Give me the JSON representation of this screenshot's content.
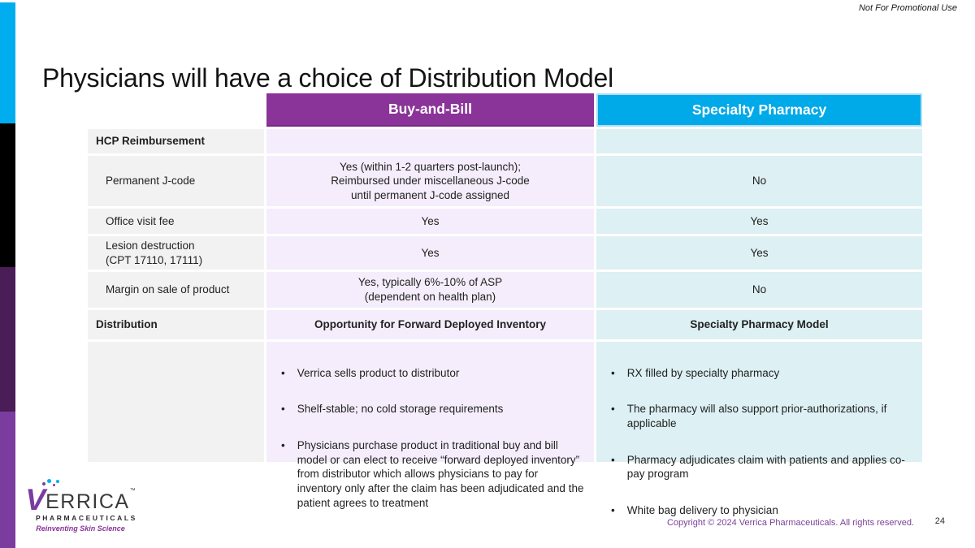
{
  "slide": {
    "disclaimer": "Not For Promotional Use",
    "title": "Physicians will have a choice of Distribution Model",
    "copyright": "Copyright © 2024 Verrica Pharmaceuticals. All rights reserved.",
    "page_number": "24"
  },
  "colors": {
    "buy_and_bill_header": "#8A3398",
    "specialty_header": "#00A9E8",
    "buy_and_bill_cell": "#F5EDFB",
    "specialty_cell": "#DDF0F3",
    "label_cell": "#F2F2F2",
    "footer_text": "#7A3F98",
    "bar_cyan": "#00AEEF",
    "bar_black": "#000000",
    "bar_dark_purple": "#4A1C58",
    "bar_purple": "#7B3CA0"
  },
  "table": {
    "headers": {
      "buy_and_bill": "Buy-and-Bill",
      "specialty_pharmacy": "Specialty Pharmacy"
    },
    "rows": [
      {
        "label": "HCP Reimbursement",
        "buy_and_bill": "",
        "specialty_pharmacy": ""
      },
      {
        "label": "Permanent J-code",
        "buy_and_bill": "Yes (within 1-2 quarters post-launch);\nReimbursed under miscellaneous J-code\nuntil permanent J-code assigned",
        "specialty_pharmacy": "No"
      },
      {
        "label": "Office visit fee",
        "buy_and_bill": "Yes",
        "specialty_pharmacy": "Yes"
      },
      {
        "label": "Lesion destruction\n(CPT 17110, 17111)",
        "buy_and_bill": "Yes",
        "specialty_pharmacy": "Yes"
      },
      {
        "label": "Margin on sale of product",
        "buy_and_bill": "Yes, typically 6%-10% of ASP\n(dependent on health plan)",
        "specialty_pharmacy": "No"
      },
      {
        "label": "Distribution",
        "buy_and_bill": "Opportunity for Forward Deployed Inventory",
        "specialty_pharmacy": "Specialty Pharmacy Model"
      }
    ],
    "bullets": {
      "buy_and_bill": [
        "Verrica sells product to distributor",
        "Shelf-stable; no cold storage requirements",
        "Physicians purchase product in traditional buy and bill model or can elect to receive “forward deployed inventory” from distributor which allows physicians to pay for inventory only after the claim has been adjudicated and the patient agrees to treatment"
      ],
      "specialty_pharmacy": [
        "RX filled by specialty pharmacy",
        "The pharmacy will also support prior-authorizations, if applicable",
        "Pharmacy adjudicates claim with patients and applies co-pay program",
        "White bag delivery to physician"
      ]
    }
  },
  "logo": {
    "v": "V",
    "brand": "ERRICA",
    "tm": "™",
    "subtitle": "PHARMACEUTICALS",
    "tagline": "Reinventing Skin Science"
  }
}
